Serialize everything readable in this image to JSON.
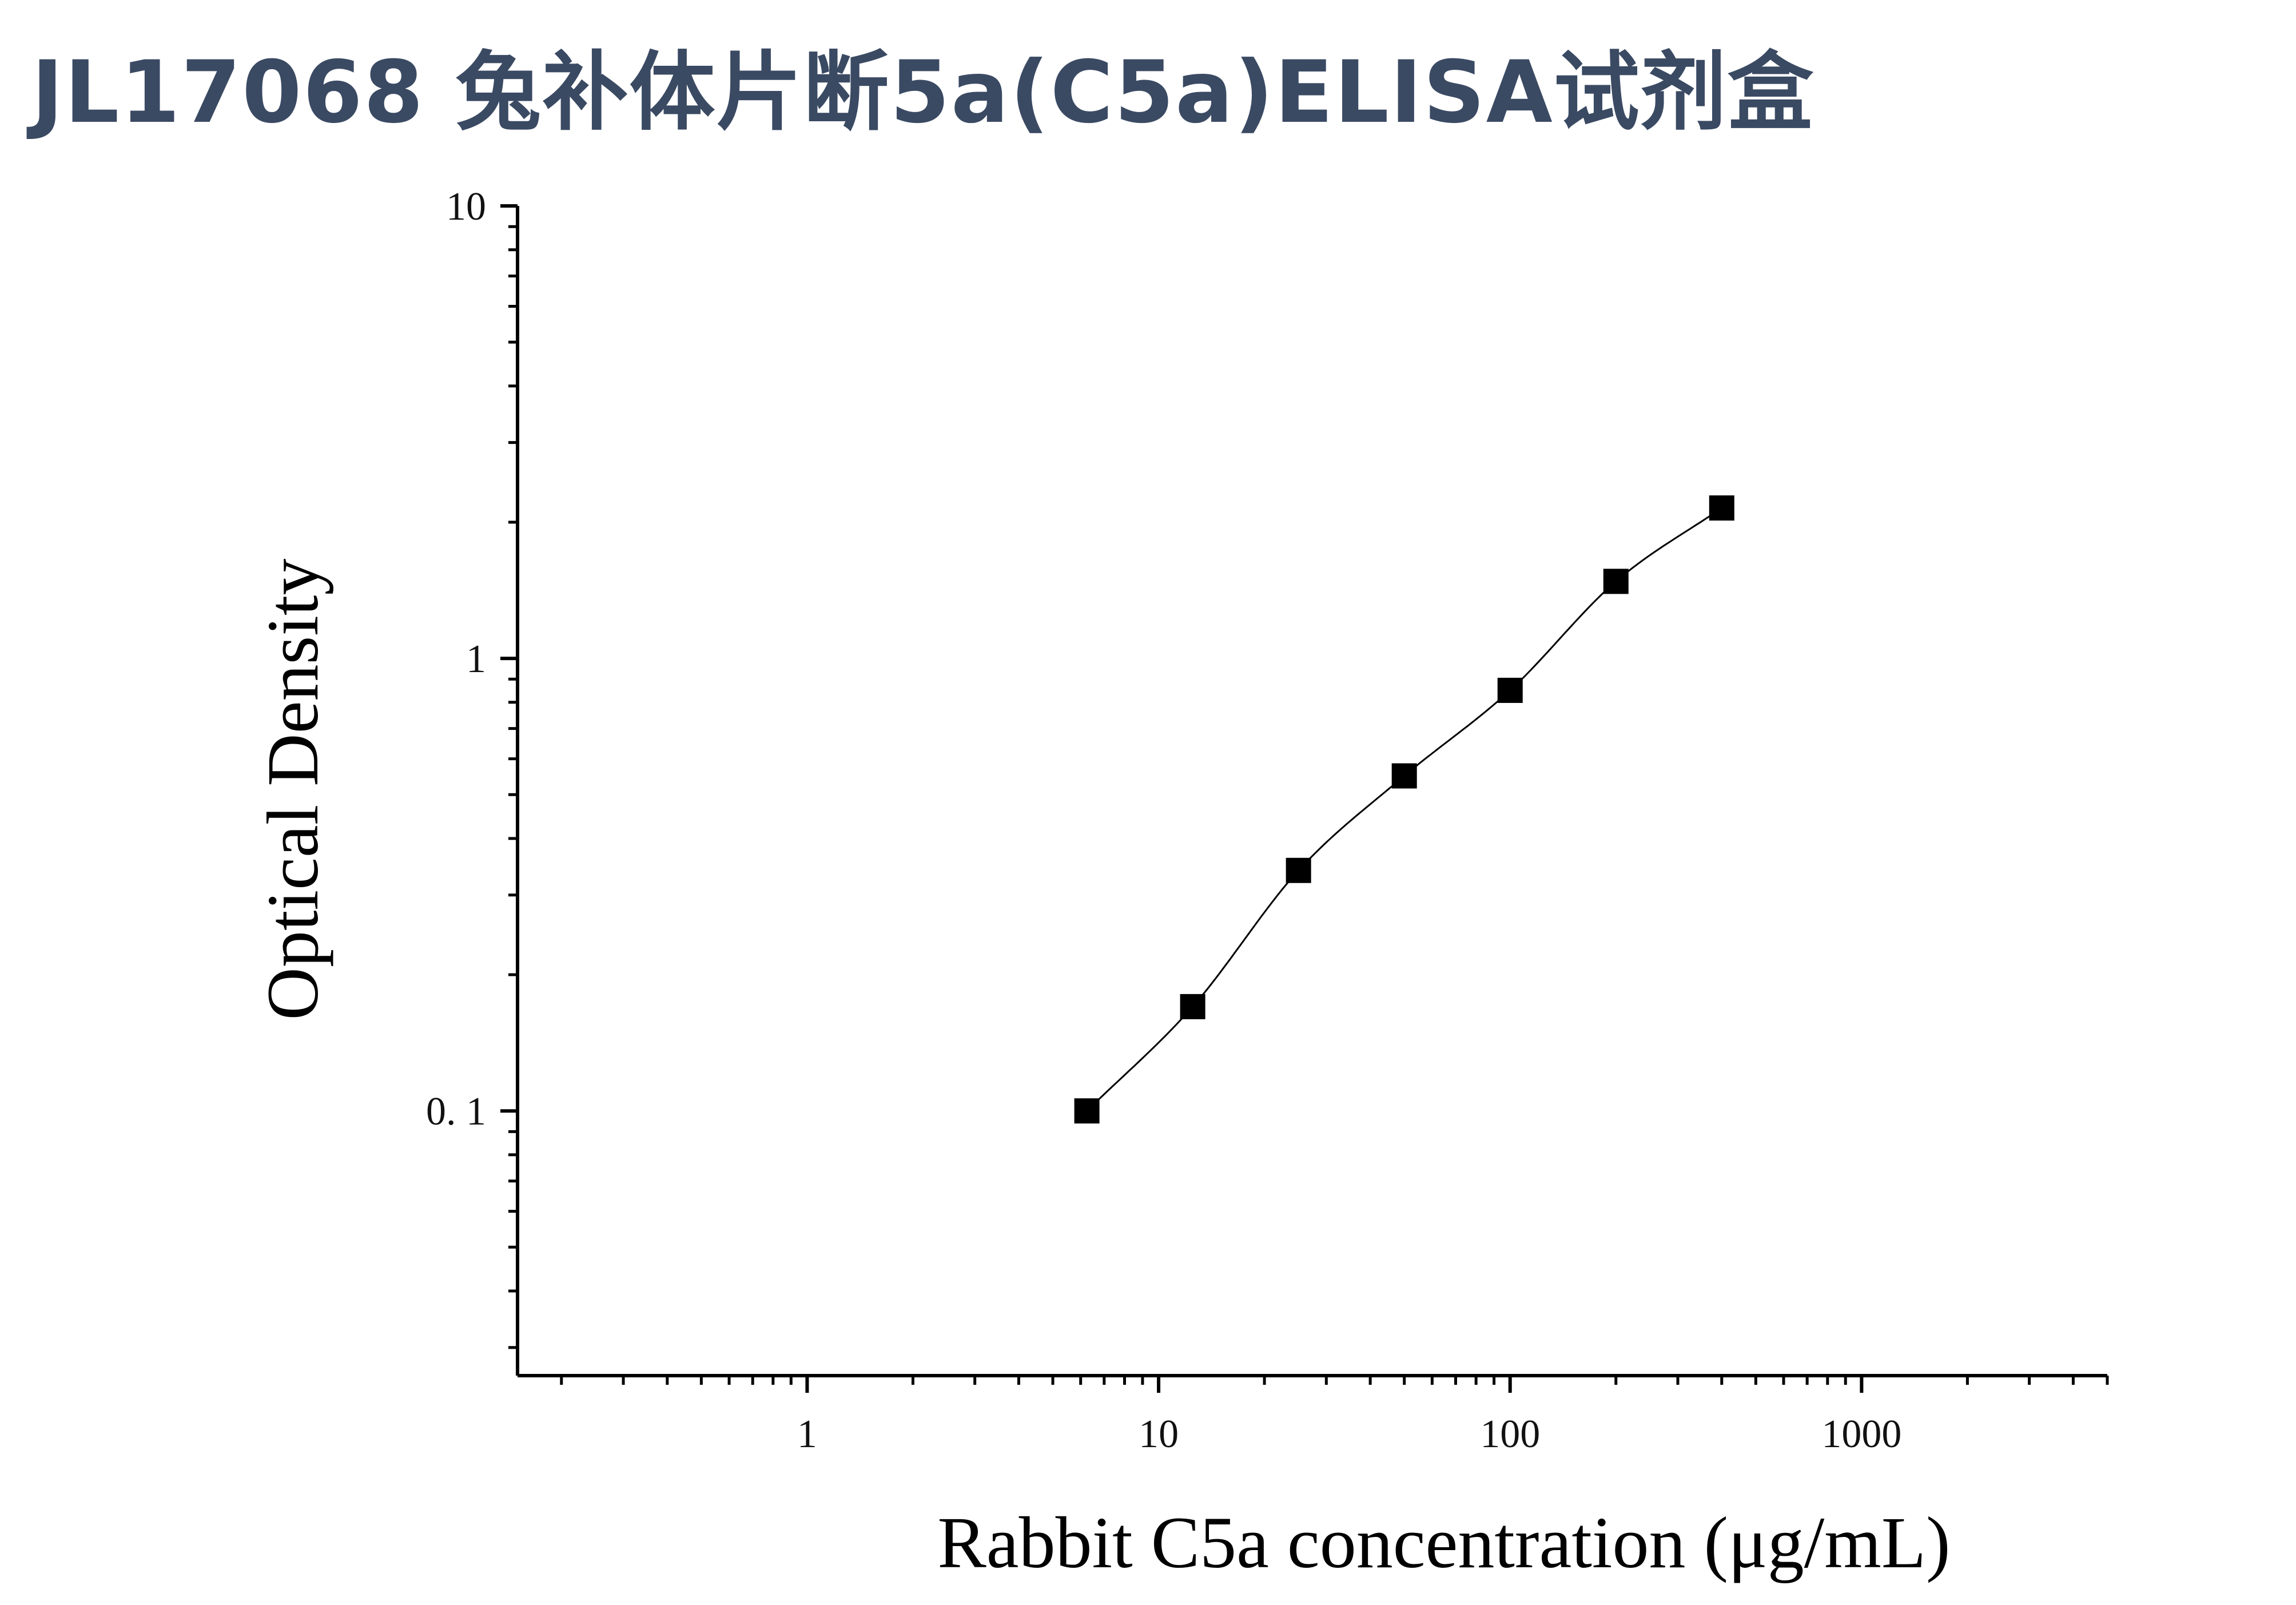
{
  "page": {
    "title": "JL17068 兔补体片断5a(C5a)ELISA试剂盒"
  },
  "chart_data": {
    "type": "scatter",
    "title": "",
    "xlabel": "Rabbit C5a concentration (μg/mL)",
    "ylabel": "Optical Density",
    "x_scale": "log",
    "y_scale": "log",
    "xlim": [
      0.15,
      5000
    ],
    "ylim": [
      0.026,
      10
    ],
    "x_tick_labels": [
      {
        "value": 1,
        "label": "1"
      },
      {
        "value": 10,
        "label": "10"
      },
      {
        "value": 100,
        "label": "100"
      },
      {
        "value": 1000,
        "label": "1000"
      }
    ],
    "y_tick_labels": [
      {
        "value": 0.1,
        "label": "0. 1"
      },
      {
        "value": 1,
        "label": "1"
      },
      {
        "value": 10,
        "label": "10"
      }
    ],
    "grid": false,
    "legend": "none",
    "marker": "square",
    "marker_color": "#000000",
    "curve_color": "#000000",
    "series": [
      {
        "x": [
          6.25,
          12.5,
          25,
          50,
          100,
          200,
          400
        ],
        "y": [
          0.1,
          0.17,
          0.34,
          0.55,
          0.85,
          1.48,
          2.15
        ]
      }
    ]
  }
}
